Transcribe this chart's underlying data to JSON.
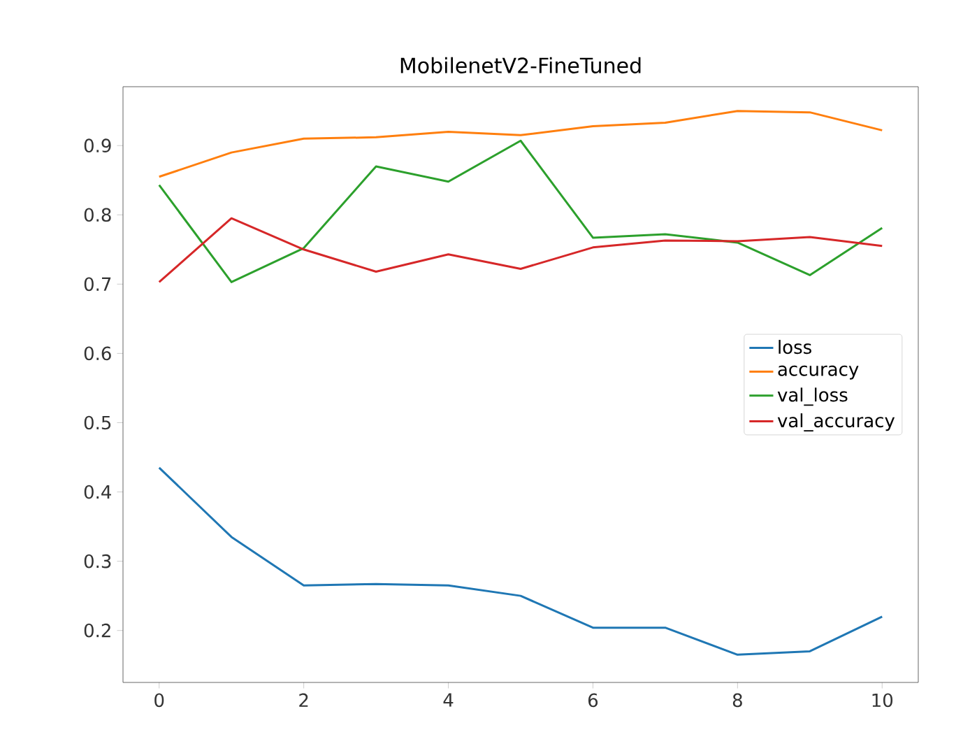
{
  "chart_data": {
    "type": "line",
    "title": "MobilenetV2-FineTuned",
    "x": [
      0,
      1,
      2,
      3,
      4,
      5,
      6,
      7,
      8,
      9,
      10
    ],
    "series": [
      {
        "name": "loss",
        "color": "#1f77b4",
        "values": [
          0.435,
          0.335,
          0.265,
          0.267,
          0.265,
          0.25,
          0.204,
          0.204,
          0.165,
          0.17,
          0.22
        ]
      },
      {
        "name": "accuracy",
        "color": "#ff7f0e",
        "values": [
          0.855,
          0.89,
          0.91,
          0.912,
          0.92,
          0.915,
          0.928,
          0.933,
          0.95,
          0.948,
          0.922
        ]
      },
      {
        "name": "val_loss",
        "color": "#2ca02c",
        "values": [
          0.843,
          0.703,
          0.752,
          0.87,
          0.848,
          0.907,
          0.767,
          0.772,
          0.76,
          0.713,
          0.781
        ]
      },
      {
        "name": "val_accuracy",
        "color": "#d62728",
        "values": [
          0.703,
          0.795,
          0.75,
          0.718,
          0.743,
          0.722,
          0.753,
          0.763,
          0.762,
          0.768,
          0.755
        ]
      }
    ],
    "xlim": [
      -0.5,
      10.5
    ],
    "ylim": [
      0.125,
      0.985
    ],
    "xticks": [
      0,
      2,
      4,
      6,
      8,
      10
    ],
    "yticks": [
      0.2,
      0.3,
      0.4,
      0.5,
      0.6,
      0.7,
      0.8,
      0.9
    ],
    "legend": "right",
    "grid": false
  }
}
